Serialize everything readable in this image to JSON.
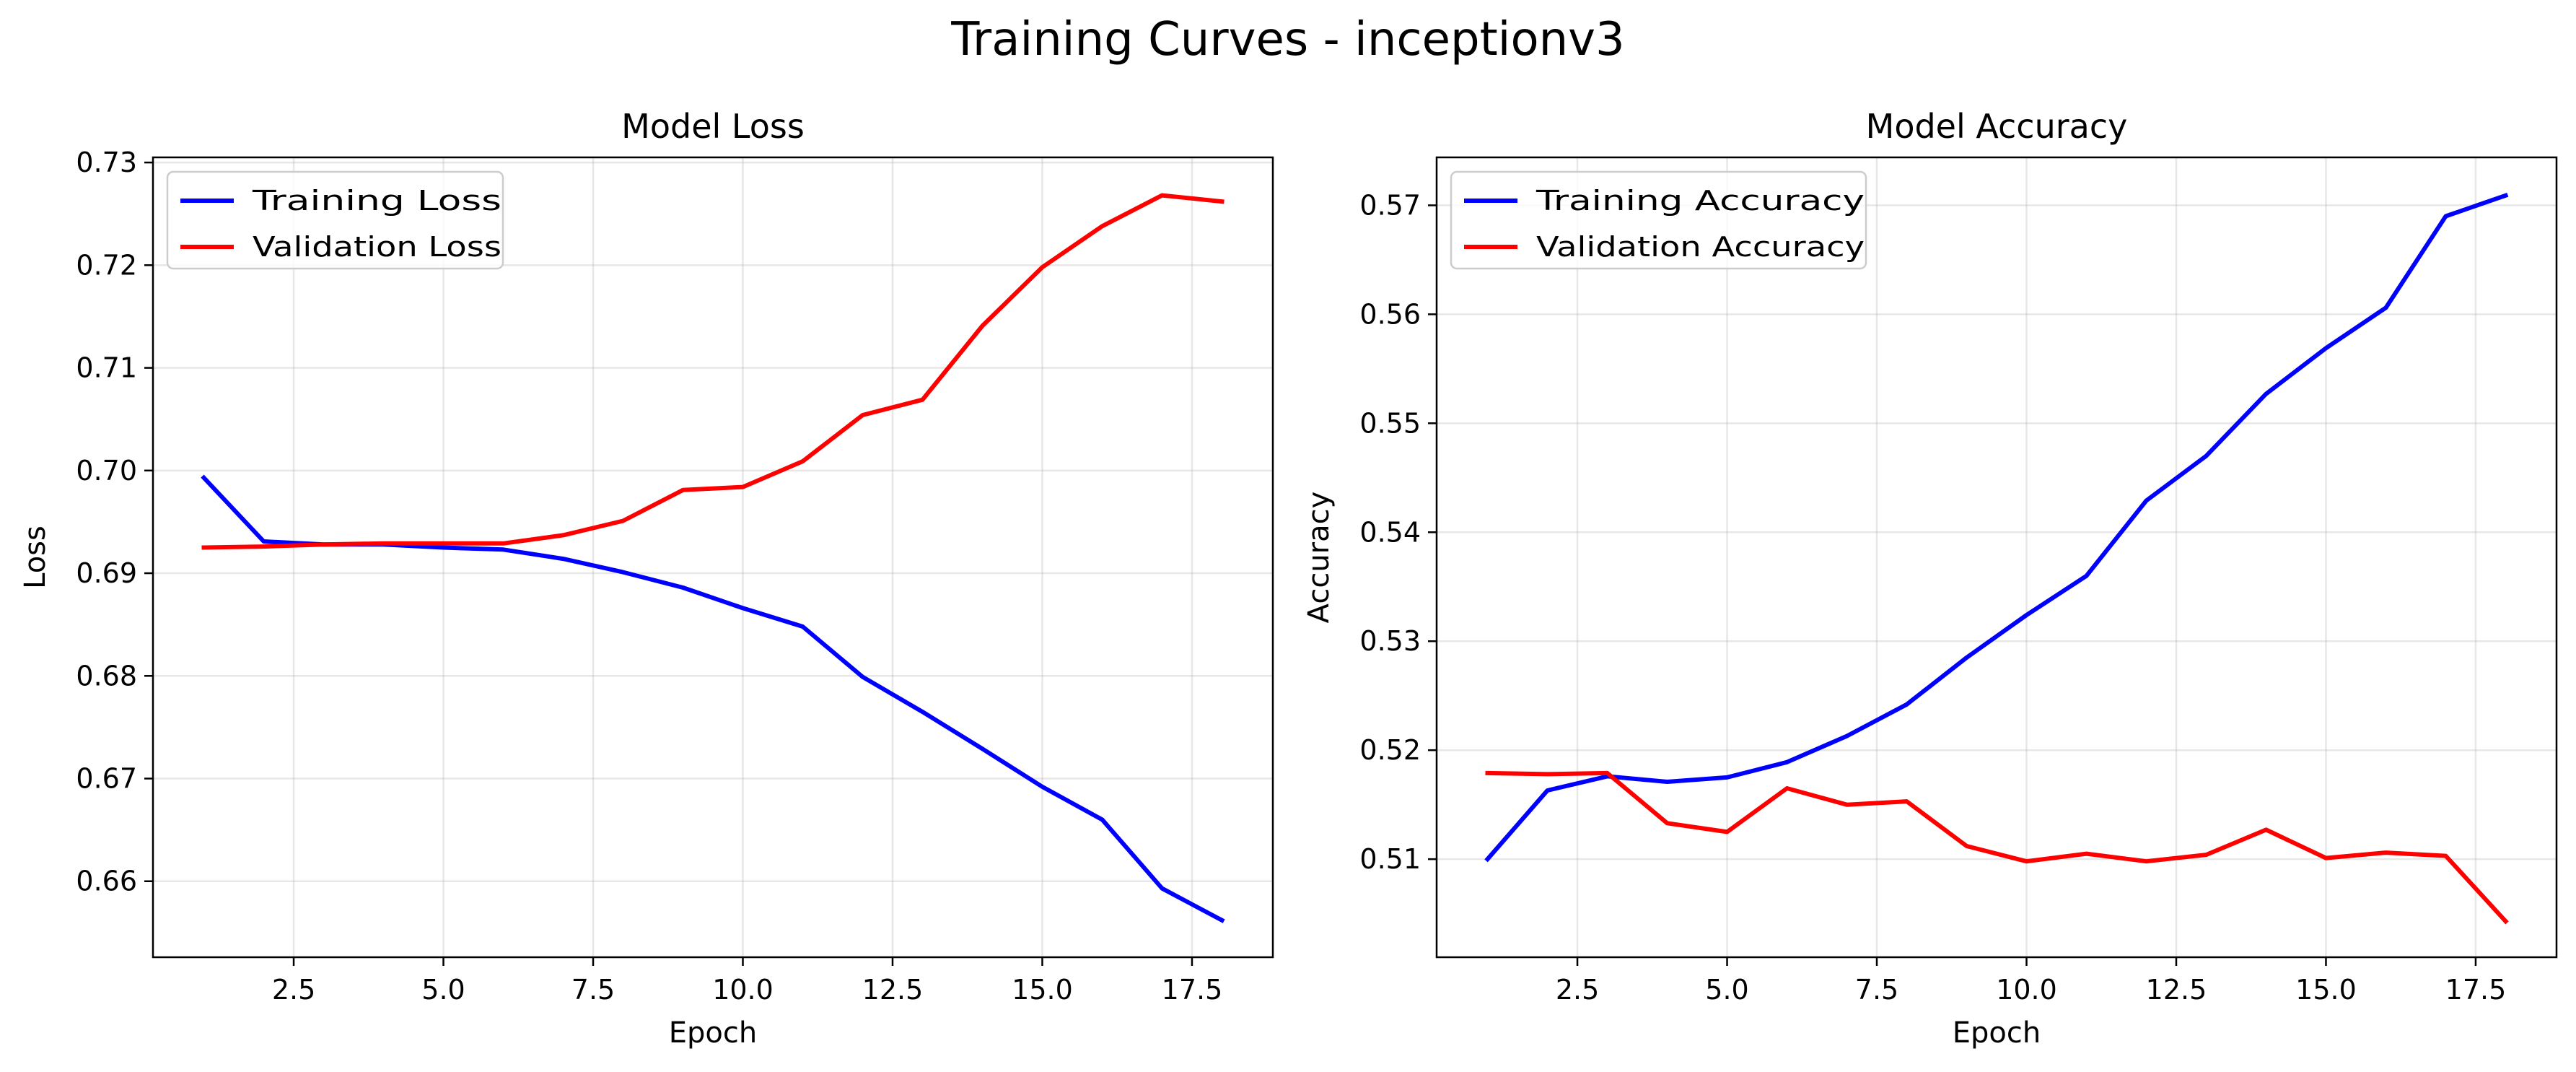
{
  "suptitle": "Training Curves - inceptionv3",
  "chart_data": [
    {
      "type": "line",
      "title": "Model Loss",
      "xlabel": "Epoch",
      "ylabel": "Loss",
      "xlim": [
        0.15,
        18.85
      ],
      "ylim": [
        0.6526,
        0.7305
      ],
      "xticks": [
        2.5,
        5.0,
        7.5,
        10.0,
        12.5,
        15.0,
        17.5
      ],
      "xtick_labels": [
        "2.5",
        "5.0",
        "7.5",
        "10.0",
        "12.5",
        "15.0",
        "17.5"
      ],
      "yticks": [
        0.66,
        0.67,
        0.68,
        0.69,
        0.7,
        0.71,
        0.72,
        0.73
      ],
      "ytick_labels": [
        "0.66",
        "0.67",
        "0.68",
        "0.69",
        "0.70",
        "0.71",
        "0.72",
        "0.73"
      ],
      "grid": true,
      "legend": "upper-left",
      "x": [
        1,
        2,
        3,
        4,
        5,
        6,
        7,
        8,
        9,
        10,
        11,
        12,
        13,
        14,
        15,
        16,
        17,
        18
      ],
      "series": [
        {
          "name": "Training Loss",
          "color": "#0000ff",
          "values": [
            0.6993,
            0.6931,
            0.6928,
            0.6928,
            0.6925,
            0.6923,
            0.6914,
            0.6901,
            0.6886,
            0.6866,
            0.6848,
            0.6799,
            0.6765,
            0.6729,
            0.6692,
            0.666,
            0.6593,
            0.6562
          ]
        },
        {
          "name": "Validation Loss",
          "color": "#ff0000",
          "values": [
            0.6925,
            0.6926,
            0.6928,
            0.6929,
            0.6929,
            0.6929,
            0.6937,
            0.6951,
            0.6981,
            0.6984,
            0.7009,
            0.7054,
            0.7069,
            0.7141,
            0.7198,
            0.7238,
            0.7268,
            0.7262
          ]
        }
      ]
    },
    {
      "type": "line",
      "title": "Model Accuracy",
      "xlabel": "Epoch",
      "ylabel": "Accuracy",
      "xlim": [
        0.15,
        18.85
      ],
      "ylim": [
        0.501,
        0.5744
      ],
      "xticks": [
        2.5,
        5.0,
        7.5,
        10.0,
        12.5,
        15.0,
        17.5
      ],
      "xtick_labels": [
        "2.5",
        "5.0",
        "7.5",
        "10.0",
        "12.5",
        "15.0",
        "17.5"
      ],
      "yticks": [
        0.51,
        0.52,
        0.53,
        0.54,
        0.55,
        0.56,
        0.57
      ],
      "ytick_labels": [
        "0.51",
        "0.52",
        "0.53",
        "0.54",
        "0.55",
        "0.56",
        "0.57"
      ],
      "grid": true,
      "legend": "upper-left",
      "x": [
        1,
        2,
        3,
        4,
        5,
        6,
        7,
        8,
        9,
        10,
        11,
        12,
        13,
        14,
        15,
        16,
        17,
        18
      ],
      "series": [
        {
          "name": "Training Accuracy",
          "color": "#0000ff",
          "values": [
            0.51,
            0.5163,
            0.5176,
            0.5171,
            0.5175,
            0.5189,
            0.5213,
            0.5242,
            0.5285,
            0.5324,
            0.536,
            0.5429,
            0.547,
            0.5527,
            0.5569,
            0.5606,
            0.569,
            0.5709
          ]
        },
        {
          "name": "Validation Accuracy",
          "color": "#ff0000",
          "values": [
            0.5179,
            0.5178,
            0.5179,
            0.5133,
            0.5125,
            0.5165,
            0.515,
            0.5153,
            0.5112,
            0.5098,
            0.5105,
            0.5098,
            0.5104,
            0.5127,
            0.5101,
            0.5106,
            0.5103,
            0.5043
          ]
        }
      ]
    }
  ]
}
